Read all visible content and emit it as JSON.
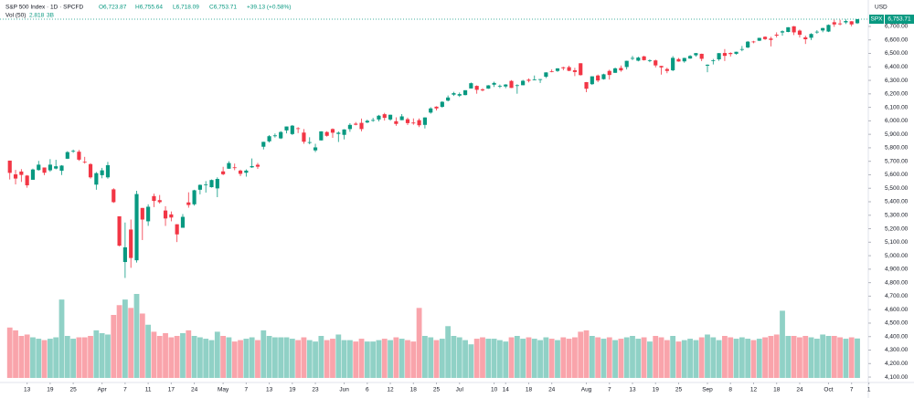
{
  "chart_data": {
    "type": "candlestick",
    "title": "S&P 500 Index · 1D · SPCFD",
    "ohlc_labels": [
      "O6,723.87",
      "H6,755.64",
      "L6,718.09",
      "C6,753.71"
    ],
    "change_label": "+39.13 (+0.58%)",
    "volume_title": "Vol (50)",
    "volume_ma_label": "3B",
    "currency": "USD",
    "symbol": "SPX",
    "last_price_label": "6,753.71",
    "up_color": "#089981",
    "down_color": "#f23645",
    "grid": false,
    "open": [
      5705,
      5603,
      5624,
      5594,
      5563,
      5635,
      5654,
      5633,
      5646,
      5630,
      5719,
      5772,
      5771,
      5696,
      5679,
      5527,
      5597,
      5581,
      5492,
      5292,
      4953,
      5194,
      4966,
      5354,
      5255,
      5442,
      5412,
      5335,
      5306,
      5233,
      5207,
      5395,
      5381,
      5489,
      5529,
      5508,
      5499,
      5625,
      5645,
      5655,
      5631,
      5615,
      5655,
      5674,
      5808,
      5848,
      5886,
      5870,
      5929,
      5902,
      5945,
      5913,
      5842,
      5781,
      5855,
      5917,
      5939,
      5903,
      5896,
      5939,
      5979,
      5985,
      5988,
      6004,
      6010,
      6049,
      6010,
      5997,
      6005,
      6012,
      5987,
      6005,
      5970,
      6061,
      6105,
      6104,
      6150,
      6194,
      6187,
      6191,
      6240,
      6259,
      6233,
      6239,
      6268,
      6255,
      6255,
      6296,
      6261,
      6264,
      6305,
      6305,
      6306,
      6327,
      6368,
      6370,
      6397,
      6398,
      6375,
      6427,
      6287,
      6272,
      6336,
      6309,
      6370,
      6356,
      6392,
      6399,
      6462,
      6446,
      6478,
      6445,
      6448,
      6407,
      6384,
      6375,
      6458,
      6441,
      6462,
      6486,
      6497,
      6409,
      6448,
      6456,
      6503,
      6503,
      6497,
      6530,
      6544,
      6588,
      6594,
      6623,
      6610,
      6639,
      6655,
      6659,
      6701,
      6669,
      6619,
      6616,
      6661,
      6670,
      6662,
      6731,
      6722,
      6730,
      6738,
      6723.87
    ],
    "high": [
      5705,
      5636,
      5642,
      5598,
      5645,
      5703,
      5654,
      5716,
      5711,
      5672,
      5775,
      5787,
      5784,
      5733,
      5686,
      5620,
      5651,
      5695,
      5500,
      5292,
      5246,
      5268,
      5481,
      5354,
      5381,
      5460,
      5450,
      5367,
      5328,
      5233,
      5309,
      5470,
      5489,
      5528,
      5553,
      5565,
      5581,
      5659,
      5700,
      5683,
      5638,
      5640,
      5721,
      5688,
      5845,
      5894,
      5906,
      5924,
      5958,
      5969,
      5953,
      5939,
      5878,
      5830,
      5922,
      5923,
      5944,
      5922,
      5938,
      5982,
      5991,
      6017,
      6009,
      6022,
      6044,
      6059,
      6046,
      6026,
      6050,
      6024,
      6018,
      6018,
      6026,
      6101,
      6108,
      6146,
      6188,
      6215,
      6210,
      6227,
      6284,
      6263,
      6242,
      6265,
      6290,
      6269,
      6272,
      6302,
      6271,
      6304,
      6315,
      6336,
      6310,
      6360,
      6381,
      6390,
      6401,
      6409,
      6393,
      6427,
      6288,
      6330,
      6343,
      6349,
      6379,
      6395,
      6410,
      6446,
      6481,
      6476,
      6482,
      6456,
      6454,
      6408,
      6394,
      6480,
      6466,
      6468,
      6487,
      6503,
      6498,
      6419,
      6459,
      6502,
      6532,
      6508,
      6513,
      6555,
      6592,
      6593,
      6616,
      6627,
      6623,
      6656,
      6671,
      6694,
      6703,
      6677,
      6632,
      6650,
      6672,
      6690,
      6715,
      6750,
      6750,
      6752,
      6739,
      6755.64
    ],
    "low": [
      5565,
      5529,
      5547,
      5504,
      5563,
      5631,
      5597,
      5622,
      5640,
      5598,
      5717,
      5763,
      5703,
      5683,
      5572,
      5489,
      5574,
      5571,
      5391,
      5070,
      4835,
      4910,
      4949,
      5116,
      5221,
      5360,
      5386,
      5221,
      5255,
      5101,
      5207,
      5356,
      5371,
      5455,
      5468,
      5505,
      5434,
      5597,
      5644,
      5634,
      5590,
      5586,
      5651,
      5644,
      5788,
      5839,
      5876,
      5865,
      5907,
      5895,
      5909,
      5830,
      5826,
      5768,
      5855,
      5883,
      5874,
      5843,
      5862,
      5919,
      5967,
      5922,
      5983,
      5993,
      5996,
      6002,
      6001,
      5963,
      6005,
      5969,
      5971,
      5953,
      5943,
      6053,
      6077,
      6097,
      6144,
      6184,
      6177,
      6189,
      6240,
      6201,
      6218,
      6237,
      6251,
      6243,
      6242,
      6244,
      6201,
      6264,
      6285,
      6303,
      6281,
      6317,
      6360,
      6363,
      6375,
      6368,
      6332,
      6336,
      6212,
      6266,
      6287,
      6305,
      6306,
      6355,
      6364,
      6381,
      6450,
      6441,
      6447,
      6435,
      6396,
      6343,
      6353,
      6368,
      6438,
      6431,
      6460,
      6476,
      6443,
      6360,
      6418,
      6445,
      6443,
      6477,
      6491,
      6516,
      6539,
      6575,
      6592,
      6600,
      6552,
      6618,
      6631,
      6657,
      6636,
      6618,
      6570,
      6599,
      6646,
      6657,
      6658,
      6697,
      6708,
      6718,
      6701,
      6718.09
    ],
    "close": [
      5614,
      5572,
      5599,
      5522,
      5639,
      5675,
      5615,
      5675,
      5663,
      5668,
      5768,
      5777,
      5712,
      5693,
      5581,
      5612,
      5633,
      5671,
      5397,
      5074,
      5062,
      4983,
      5457,
      5268,
      5363,
      5406,
      5397,
      5276,
      5283,
      5158,
      5288,
      5376,
      5485,
      5525,
      5529,
      5561,
      5569,
      5604,
      5687,
      5650,
      5607,
      5631,
      5664,
      5660,
      5844,
      5886,
      5892,
      5917,
      5958,
      5964,
      5941,
      5845,
      5842,
      5803,
      5922,
      5889,
      5912,
      5912,
      5936,
      5970,
      5971,
      5939,
      6000,
      6006,
      6038,
      6022,
      6045,
      5977,
      6033,
      5983,
      5981,
      5967,
      6025,
      6092,
      6092,
      6141,
      6173,
      6205,
      6198,
      6227,
      6279,
      6230,
      6226,
      6263,
      6281,
      6260,
      6269,
      6244,
      6264,
      6297,
      6297,
      6306,
      6309,
      6359,
      6363,
      6389,
      6390,
      6371,
      6362,
      6339,
      6238,
      6330,
      6299,
      6345,
      6340,
      6389,
      6374,
      6445,
      6466,
      6469,
      6450,
      6449,
      6411,
      6396,
      6370,
      6467,
      6440,
      6466,
      6481,
      6502,
      6460,
      6416,
      6448,
      6502,
      6482,
      6495,
      6512,
      6532,
      6587,
      6584,
      6615,
      6606,
      6600,
      6632,
      6664,
      6694,
      6656,
      6638,
      6605,
      6644,
      6661,
      6688,
      6711,
      6715,
      6716,
      6740,
      6715,
      6753.71
    ],
    "volume": [
      3.6,
      3.4,
      3.0,
      3.1,
      2.9,
      2.8,
      2.7,
      2.8,
      2.9,
      5.6,
      3.0,
      2.8,
      2.9,
      2.9,
      3.0,
      3.4,
      3.2,
      3.1,
      4.5,
      5.2,
      5.6,
      5.0,
      6.0,
      4.6,
      3.8,
      3.3,
      3.0,
      3.2,
      2.9,
      3.0,
      3.2,
      3.4,
      3.0,
      2.9,
      2.8,
      2.7,
      3.3,
      3.0,
      2.9,
      2.6,
      2.7,
      2.8,
      2.9,
      2.7,
      3.4,
      3.0,
      2.9,
      2.9,
      2.9,
      2.8,
      2.7,
      2.9,
      2.7,
      2.6,
      3.0,
      2.7,
      2.8,
      3.1,
      2.7,
      2.7,
      2.6,
      2.8,
      2.6,
      2.6,
      2.7,
      2.8,
      2.7,
      2.9,
      2.8,
      2.7,
      2.6,
      5.0,
      3.0,
      2.9,
      2.7,
      2.8,
      3.7,
      3.0,
      2.9,
      2.7,
      2.4,
      2.8,
      2.9,
      2.8,
      2.8,
      2.7,
      2.6,
      2.9,
      3.0,
      2.8,
      2.9,
      2.8,
      2.7,
      2.9,
      2.8,
      2.7,
      2.9,
      2.8,
      2.9,
      3.3,
      3.4,
      3.0,
      2.9,
      2.8,
      2.9,
      2.7,
      2.8,
      2.9,
      3.0,
      2.8,
      2.9,
      2.6,
      3.0,
      2.9,
      2.7,
      3.0,
      2.6,
      2.7,
      2.8,
      2.7,
      2.9,
      3.1,
      2.9,
      2.7,
      3.0,
      2.9,
      2.8,
      2.9,
      2.8,
      2.7,
      2.8,
      2.9,
      3.0,
      3.1,
      4.8,
      3.0,
      3.0,
      2.9,
      3.0,
      2.9,
      2.8,
      3.1,
      3.0,
      3.0,
      2.9,
      2.8,
      2.9,
      2.818
    ],
    "xlim": [
      -1.7,
      148.9
    ],
    "xticks": [
      {
        "value": 3,
        "label": "13"
      },
      {
        "value": 7,
        "label": "19"
      },
      {
        "value": 11,
        "label": "25"
      },
      {
        "value": 16,
        "label": "Apr"
      },
      {
        "value": 20,
        "label": "7"
      },
      {
        "value": 24,
        "label": "11"
      },
      {
        "value": 28,
        "label": "17"
      },
      {
        "value": 32,
        "label": "24"
      },
      {
        "value": 37,
        "label": "May"
      },
      {
        "value": 41,
        "label": "7"
      },
      {
        "value": 45,
        "label": "13"
      },
      {
        "value": 49,
        "label": "19"
      },
      {
        "value": 53,
        "label": "23"
      },
      {
        "value": 58,
        "label": "Jun"
      },
      {
        "value": 62,
        "label": "6"
      },
      {
        "value": 66,
        "label": "12"
      },
      {
        "value": 70,
        "label": "18"
      },
      {
        "value": 74,
        "label": "25"
      },
      {
        "value": 78,
        "label": "Jul"
      },
      {
        "value": 84,
        "label": "10"
      },
      {
        "value": 86,
        "label": "14"
      },
      {
        "value": 90,
        "label": "18"
      },
      {
        "value": 94,
        "label": "24"
      },
      {
        "value": 100,
        "label": "Aug"
      },
      {
        "value": 104,
        "label": "7"
      },
      {
        "value": 108,
        "label": "13"
      },
      {
        "value": 112,
        "label": "19"
      },
      {
        "value": 116,
        "label": "25"
      },
      {
        "value": 121,
        "label": "Sep"
      },
      {
        "value": 125,
        "label": "8"
      },
      {
        "value": 129,
        "label": "12"
      },
      {
        "value": 133,
        "label": "18"
      },
      {
        "value": 137,
        "label": "24"
      },
      {
        "value": 142,
        "label": "Oct"
      },
      {
        "value": 146,
        "label": "7"
      },
      {
        "value": 149,
        "label": "1"
      }
    ],
    "ylim": [
      4053,
      6896
    ],
    "yticks": [
      {
        "value": 4100,
        "label": "4,100.00"
      },
      {
        "value": 4200,
        "label": "4,200.00"
      },
      {
        "value": 4300,
        "label": "4,300.00"
      },
      {
        "value": 4400,
        "label": "4,400.00"
      },
      {
        "value": 4500,
        "label": "4,500.00"
      },
      {
        "value": 4600,
        "label": "4,600.00"
      },
      {
        "value": 4700,
        "label": "4,700.00"
      },
      {
        "value": 4800,
        "label": "4,800.00"
      },
      {
        "value": 4900,
        "label": "4,900.00"
      },
      {
        "value": 5000,
        "label": "5,000.00"
      },
      {
        "value": 5100,
        "label": "5,100.00"
      },
      {
        "value": 5200,
        "label": "5,200.00"
      },
      {
        "value": 5300,
        "label": "5,300.00"
      },
      {
        "value": 5400,
        "label": "5,400.00"
      },
      {
        "value": 5500,
        "label": "5,500.00"
      },
      {
        "value": 5600,
        "label": "5,600.00"
      },
      {
        "value": 5700,
        "label": "5,700.00"
      },
      {
        "value": 5800,
        "label": "5,800.00"
      },
      {
        "value": 5900,
        "label": "5,900.00"
      },
      {
        "value": 6000,
        "label": "6,000.00"
      },
      {
        "value": 6100,
        "label": "6,100.00"
      },
      {
        "value": 6200,
        "label": "6,200.00"
      },
      {
        "value": 6300,
        "label": "6,300.00"
      },
      {
        "value": 6400,
        "label": "6,400.00"
      },
      {
        "value": 6500,
        "label": "6,500.00"
      },
      {
        "value": 6600,
        "label": "6,600.00"
      },
      {
        "value": 6700,
        "label": "6,700.00"
      }
    ]
  }
}
